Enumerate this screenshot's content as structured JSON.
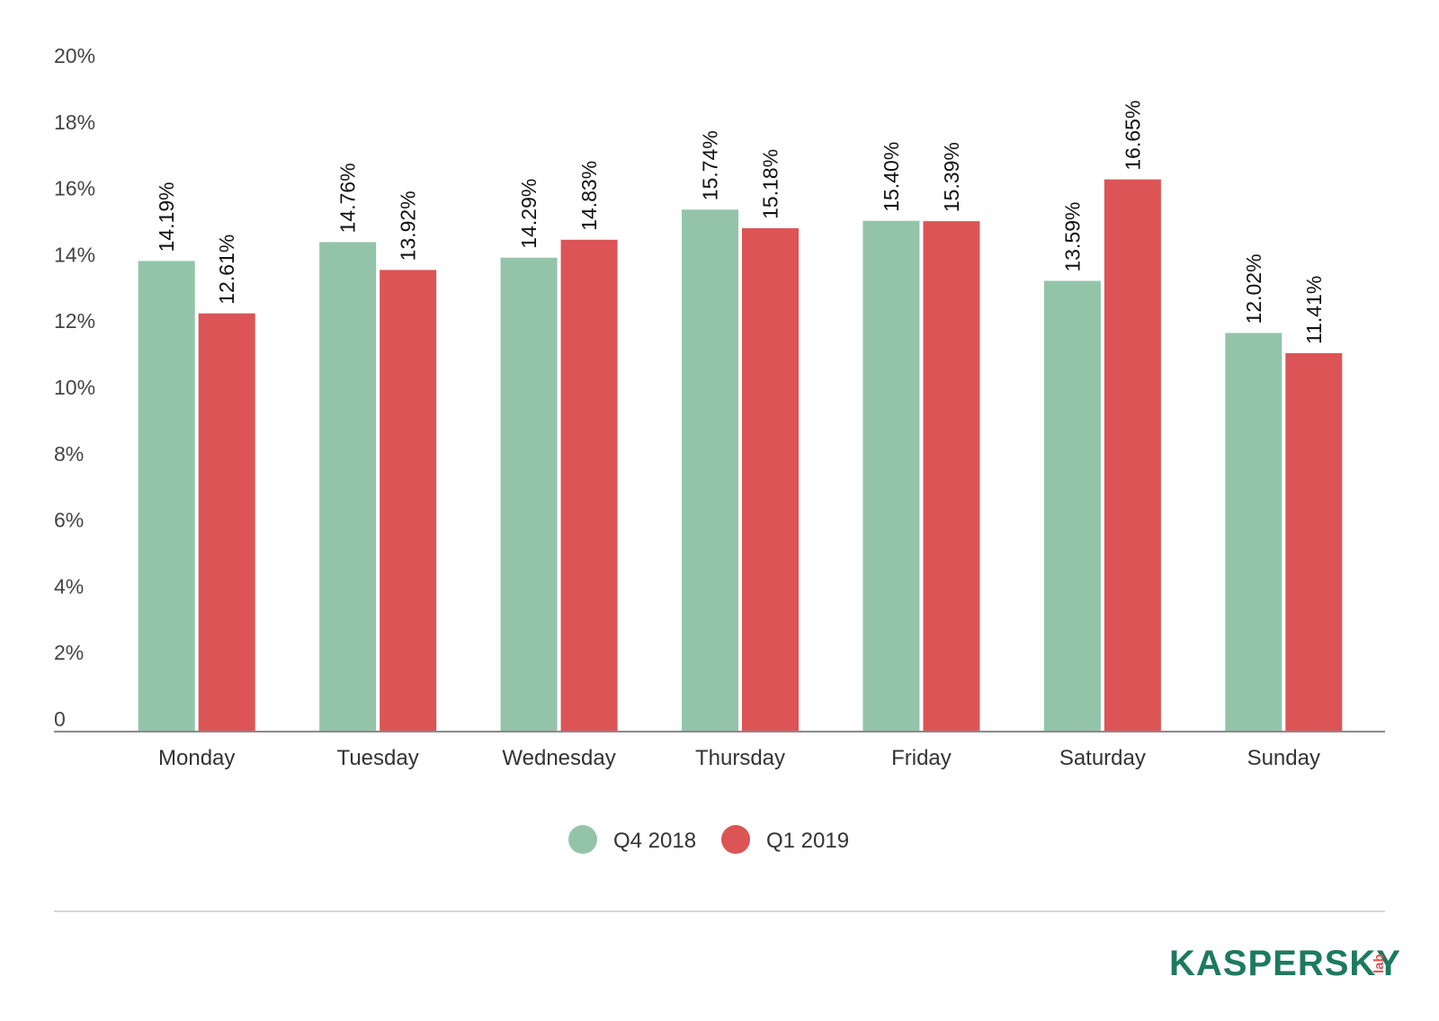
{
  "chart_data": {
    "type": "bar",
    "categories": [
      "Monday",
      "Tuesday",
      "Wednesday",
      "Thursday",
      "Friday",
      "Saturday",
      "Sunday"
    ],
    "series": [
      {
        "name": "Q4 2018",
        "color": "#93c4a9",
        "values": [
          14.19,
          14.76,
          14.29,
          15.74,
          15.4,
          13.59,
          12.02
        ],
        "labels": [
          "14.19%",
          "14.76%",
          "14.29%",
          "15.74%",
          "15.40%",
          "13.59%",
          "12.02%"
        ]
      },
      {
        "name": "Q1 2019",
        "color": "#dc5455",
        "values": [
          12.61,
          13.92,
          14.83,
          15.18,
          15.39,
          16.65,
          11.41
        ],
        "labels": [
          "12.61%",
          "13.92%",
          "14.83%",
          "15.18%",
          "15.39%",
          "16.65%",
          "11.41%"
        ]
      }
    ],
    "yticks": [
      {
        "value": 0,
        "label": "0"
      },
      {
        "value": 2,
        "label": "2%"
      },
      {
        "value": 4,
        "label": "4%"
      },
      {
        "value": 6,
        "label": "6%"
      },
      {
        "value": 8,
        "label": "8%"
      },
      {
        "value": 10,
        "label": "10%"
      },
      {
        "value": 12,
        "label": "12%"
      },
      {
        "value": 14,
        "label": "14%"
      },
      {
        "value": 16,
        "label": "16%"
      },
      {
        "value": 18,
        "label": "18%"
      },
      {
        "value": 20,
        "label": "20%"
      }
    ],
    "ylim": [
      0,
      20
    ],
    "grid": false,
    "legend": "bottom-center",
    "title": "",
    "xlabel": "",
    "ylabel": ""
  },
  "logo": {
    "text": "KASPERSKY",
    "sub": "lab",
    "color": "#1d7a5e",
    "accent": "#dc5455"
  }
}
